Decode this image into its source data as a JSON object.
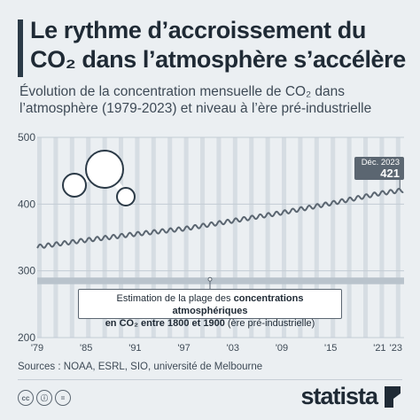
{
  "header": {
    "title": "Le rythme d’accroissement du\nCO₂ dans l’atmosphère s’accélère",
    "subtitle": "Évolution de la concentration mensuelle de CO₂ dans\nl’atmosphère (1979-2023) et niveau à l’ère pré-industrielle"
  },
  "annotation": {
    "line1": "Estimation de la plage des ",
    "bold1": "concentrations atmosphériques",
    "bold2": "en CO₂ entre 1800 et 1900",
    "line2_rest": " (ère pré-industrielle)"
  },
  "callout": {
    "date": "Déc. 2023",
    "value": "421"
  },
  "footer": {
    "source": "Sources : NOAA, ESRL, SIO, université de Melbourne",
    "brand": "statista"
  },
  "colors": {
    "line": "#5b6671",
    "band": "#b9c3cc",
    "stripe": "#d6dde3",
    "background": "#ebeff2"
  },
  "chart_data": {
    "type": "line",
    "title": "Le rythme d’accroissement du CO₂ dans l’atmosphère s’accélère",
    "y_ticks": [
      200,
      300,
      400,
      500
    ],
    "ylim": [
      200,
      500
    ],
    "x_ticks": [
      "'79",
      "'85",
      "'91",
      "'97",
      "'03",
      "'09",
      "'15",
      "'21",
      "'23"
    ],
    "x_tick_years": [
      1979,
      1985,
      1991,
      1997,
      2003,
      2009,
      2015,
      2021,
      2023
    ],
    "xlim": [
      1979,
      2024
    ],
    "grid": true,
    "seasonal_amplitude_ppm": 3,
    "series": [
      {
        "x": [
          1979,
          1985,
          1991,
          1997,
          2003,
          2009,
          2015,
          2021,
          2023.92
        ],
        "y": [
          336,
          346,
          355,
          363,
          375,
          387,
          401,
          416,
          421
        ]
      }
    ],
    "preindustrial_band": {
      "x_range": [
        1800,
        1900
      ],
      "y_range": [
        280,
        290
      ]
    }
  }
}
